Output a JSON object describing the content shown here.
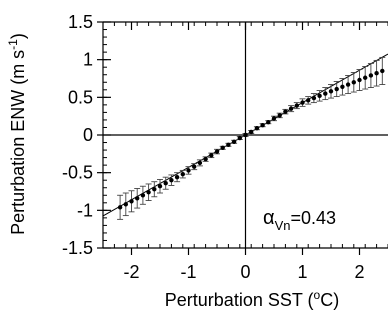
{
  "chart_data": {
    "type": "scatter",
    "xlabel": "Perturbation SST (",
    "xlabel_sup": "o",
    "xlabel_unit": "C)",
    "ylabel": "Perturbation ENW (m s",
    "ylabel_sup": "-1",
    "ylabel_end": ")",
    "xlim": [
      -2.5,
      2.5
    ],
    "ylim": [
      -1.5,
      1.5
    ],
    "x_ticks": [
      -2,
      -1,
      0,
      1,
      2
    ],
    "x_tick_labels": [
      "-2",
      "-1",
      "0",
      "1",
      "2"
    ],
    "y_ticks": [
      -1.5,
      -1,
      -0.5,
      0,
      0.5,
      1,
      1.5
    ],
    "y_tick_labels": [
      "-1.5",
      "-1",
      "-0.5",
      "0",
      "0.5",
      "1",
      "1.5"
    ],
    "annotation": {
      "symbol": "α",
      "subscript": "Vn",
      "text": "=0.43"
    },
    "fit_line": {
      "slope": 0.43,
      "intercept": 0
    },
    "series": [
      {
        "x": [
          -2.2,
          -2.1,
          -2.0,
          -1.9,
          -1.8,
          -1.7,
          -1.6,
          -1.5,
          -1.4,
          -1.3,
          -1.2,
          -1.1,
          -1.0,
          -0.9,
          -0.8,
          -0.7,
          -0.6,
          -0.5,
          -0.4,
          -0.3,
          -0.2,
          -0.1,
          0.0,
          0.1,
          0.2,
          0.3,
          0.4,
          0.5,
          0.6,
          0.7,
          0.8,
          0.9,
          1.0,
          1.1,
          1.2,
          1.3,
          1.4,
          1.5,
          1.6,
          1.7,
          1.8,
          1.9,
          2.0,
          2.1,
          2.2,
          2.3,
          2.4
        ],
        "y": [
          -0.96,
          -0.92,
          -0.88,
          -0.84,
          -0.8,
          -0.76,
          -0.72,
          -0.68,
          -0.64,
          -0.6,
          -0.56,
          -0.52,
          -0.47,
          -0.42,
          -0.37,
          -0.32,
          -0.27,
          -0.22,
          -0.17,
          -0.13,
          -0.09,
          -0.04,
          0.0,
          0.04,
          0.09,
          0.13,
          0.17,
          0.22,
          0.26,
          0.31,
          0.35,
          0.39,
          0.43,
          0.46,
          0.49,
          0.52,
          0.55,
          0.58,
          0.61,
          0.64,
          0.67,
          0.7,
          0.73,
          0.76,
          0.79,
          0.82,
          0.85
        ],
        "err": [
          0.16,
          0.15,
          0.14,
          0.13,
          0.12,
          0.11,
          0.1,
          0.09,
          0.08,
          0.07,
          0.06,
          0.05,
          0.05,
          0.04,
          0.04,
          0.03,
          0.03,
          0.03,
          0.02,
          0.02,
          0.02,
          0.02,
          0.02,
          0.02,
          0.02,
          0.02,
          0.02,
          0.03,
          0.03,
          0.03,
          0.04,
          0.04,
          0.05,
          0.05,
          0.06,
          0.07,
          0.08,
          0.09,
          0.1,
          0.11,
          0.12,
          0.13,
          0.14,
          0.15,
          0.16,
          0.17,
          0.18
        ]
      }
    ]
  }
}
